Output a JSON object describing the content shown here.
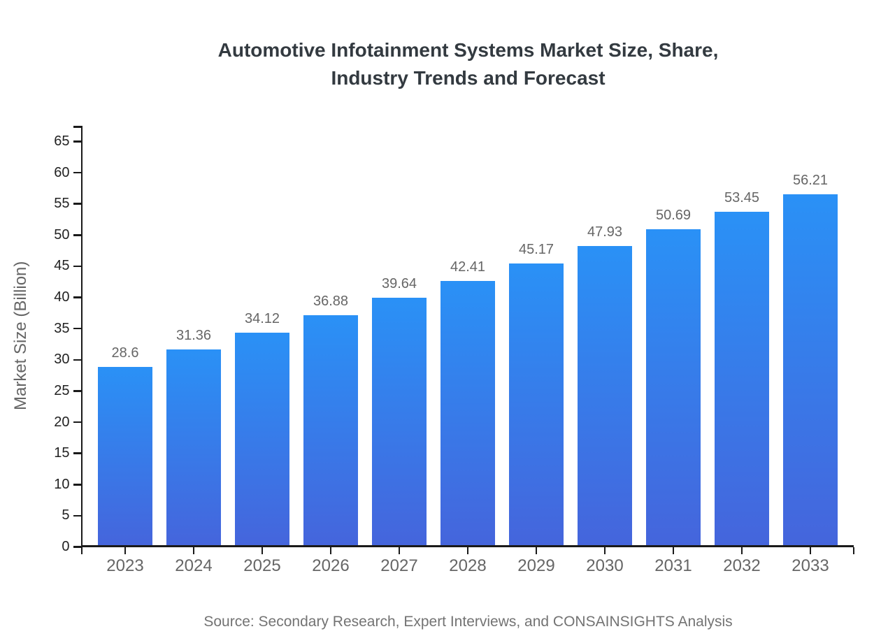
{
  "title": {
    "lines": [
      "Automotive Infotainment Systems Market Size, Share,",
      "Industry Trends and Forecast"
    ]
  },
  "source": "Source: Secondary Research, Expert Interviews, and CONSAINSIGHTS Analysis",
  "chart_data": {
    "type": "bar",
    "title": "Automotive Infotainment Systems Market Size, Share, Industry Trends and Forecast",
    "categories": [
      "2023",
      "2024",
      "2025",
      "2026",
      "2027",
      "2028",
      "2029",
      "2030",
      "2031",
      "2032",
      "2033"
    ],
    "values": [
      28.6,
      31.36,
      34.12,
      36.88,
      39.64,
      42.41,
      45.17,
      47.93,
      50.69,
      53.45,
      56.21
    ],
    "value_labels": [
      "28.6",
      "31.36",
      "34.12",
      "36.88",
      "39.64",
      "42.41",
      "45.17",
      "47.93",
      "50.69",
      "53.45",
      "56.21"
    ],
    "xlabel": "",
    "ylabel": "Market Size (Billion)",
    "ylim": [
      0,
      65
    ],
    "ytick_step": 5,
    "grid": false,
    "legend": "none",
    "colors": {
      "bar_gradient_top": "#2A91F6",
      "bar_gradient_bottom": "#4565DC",
      "axis": "#1a1a1a",
      "y_tick_label": "#222222",
      "x_tick_label": "#666666",
      "value_label": "#666666",
      "title": "#333a40",
      "source": "#737373"
    }
  }
}
